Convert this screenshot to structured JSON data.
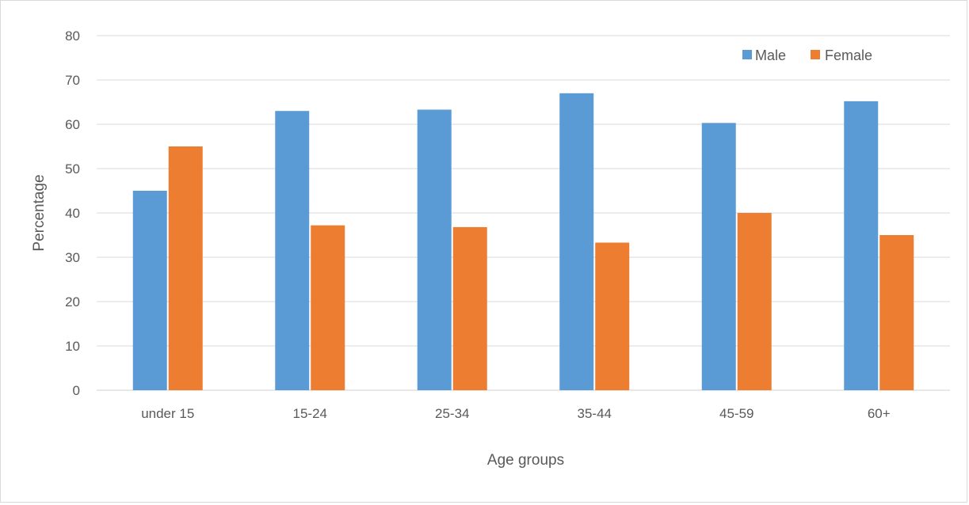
{
  "chart_data": {
    "type": "bar",
    "categories": [
      "under 15",
      "15-24",
      "25-34",
      "35-44",
      "45-59",
      "60+"
    ],
    "series": [
      {
        "name": "Male",
        "values": [
          45,
          63,
          63.3,
          67,
          60.3,
          65.2
        ],
        "color": "#5B9BD5"
      },
      {
        "name": "Female",
        "values": [
          55,
          37.2,
          36.8,
          33.3,
          40,
          35
        ],
        "color": "#ED7D31"
      }
    ],
    "title": "",
    "xlabel": "Age groups",
    "ylabel": "Percentage",
    "ylim": [
      0,
      80
    ],
    "yticks": [
      "0",
      "10",
      "20",
      "30",
      "40",
      "50",
      "60",
      "70",
      "80"
    ],
    "grid": true,
    "legend_position": "top-right"
  }
}
